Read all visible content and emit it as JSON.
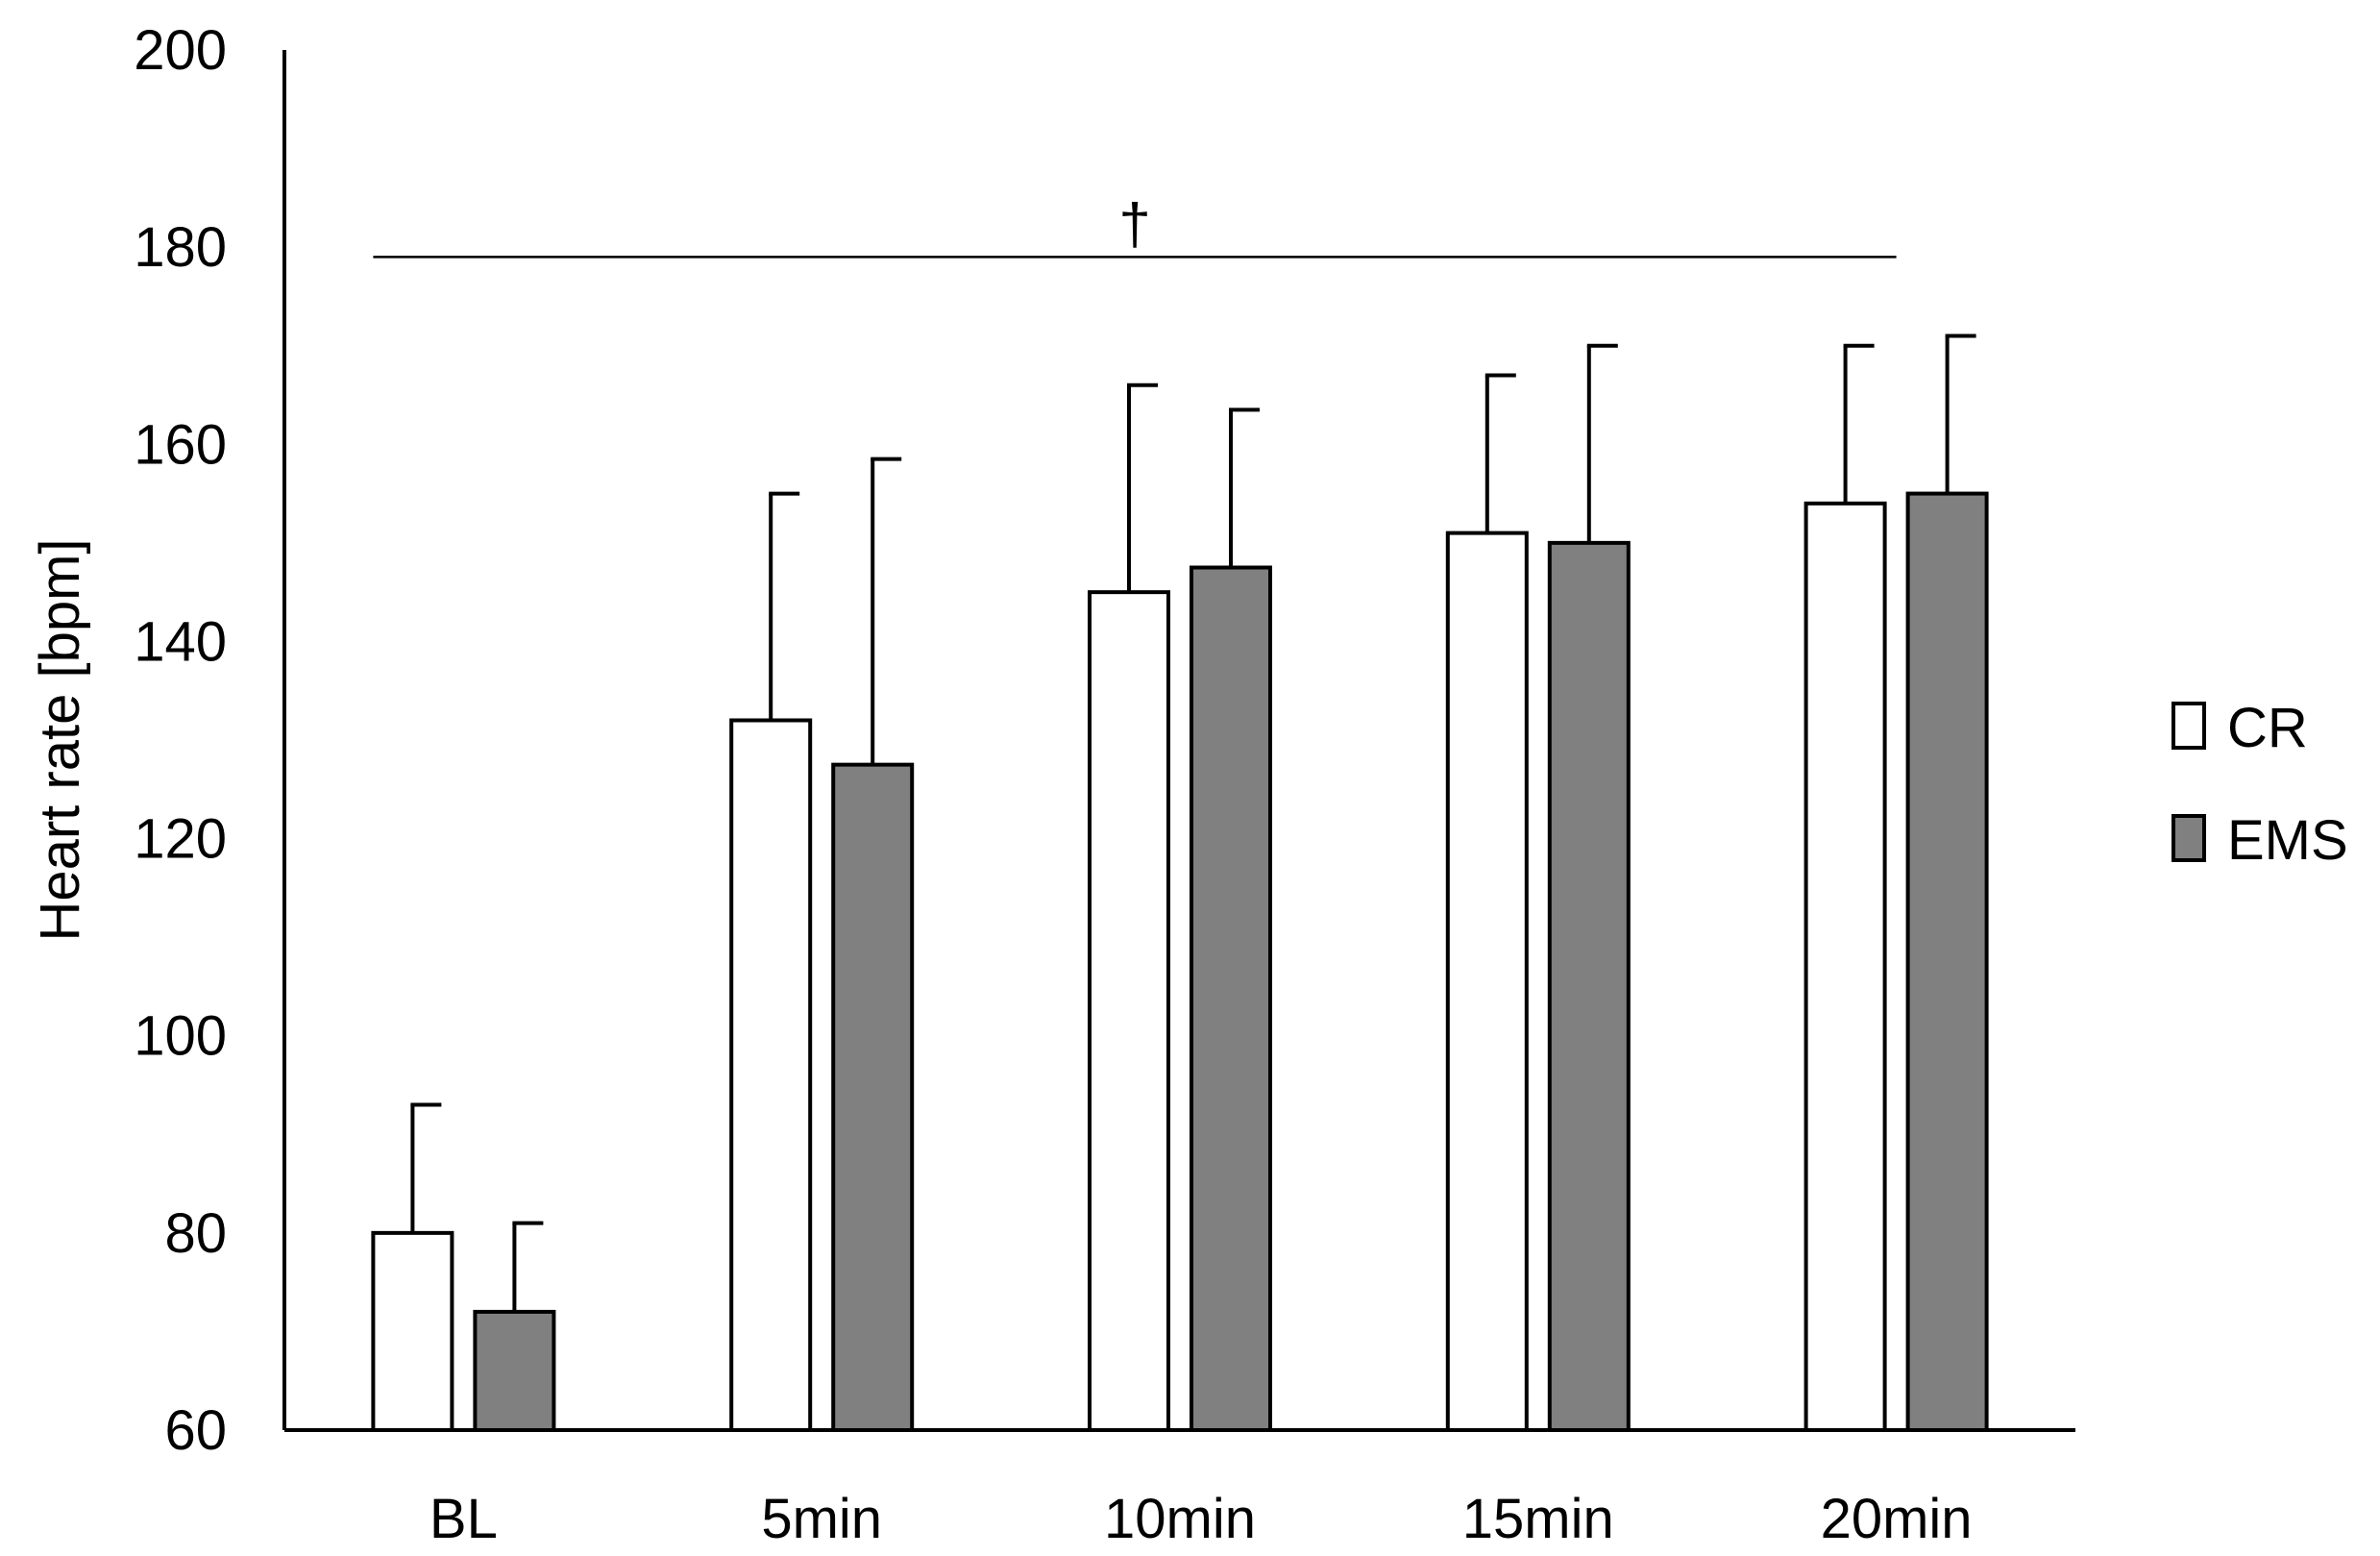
{
  "chart_data": {
    "type": "bar",
    "title": "",
    "xlabel": "",
    "ylabel": "Heart rate [bpm]",
    "ylim": [
      60,
      200
    ],
    "yticks": [
      60,
      80,
      100,
      120,
      140,
      160,
      180,
      200
    ],
    "grid": false,
    "legend_position": "right",
    "categories": [
      "BL",
      "5min",
      "10min",
      "15min",
      "20min"
    ],
    "series": [
      {
        "name": "CR",
        "color": "#ffffff",
        "values": [
          80,
          132,
          145,
          151,
          154
        ],
        "errors": [
          13,
          23,
          21,
          16,
          16
        ]
      },
      {
        "name": "EMS",
        "color": "#808080",
        "values": [
          72,
          127.5,
          147.5,
          150,
          155
        ],
        "errors": [
          9,
          31,
          16,
          20,
          16
        ]
      }
    ],
    "annotation": {
      "symbol": "†",
      "value": 179,
      "from_category": "BL",
      "to_category": "20min"
    }
  }
}
